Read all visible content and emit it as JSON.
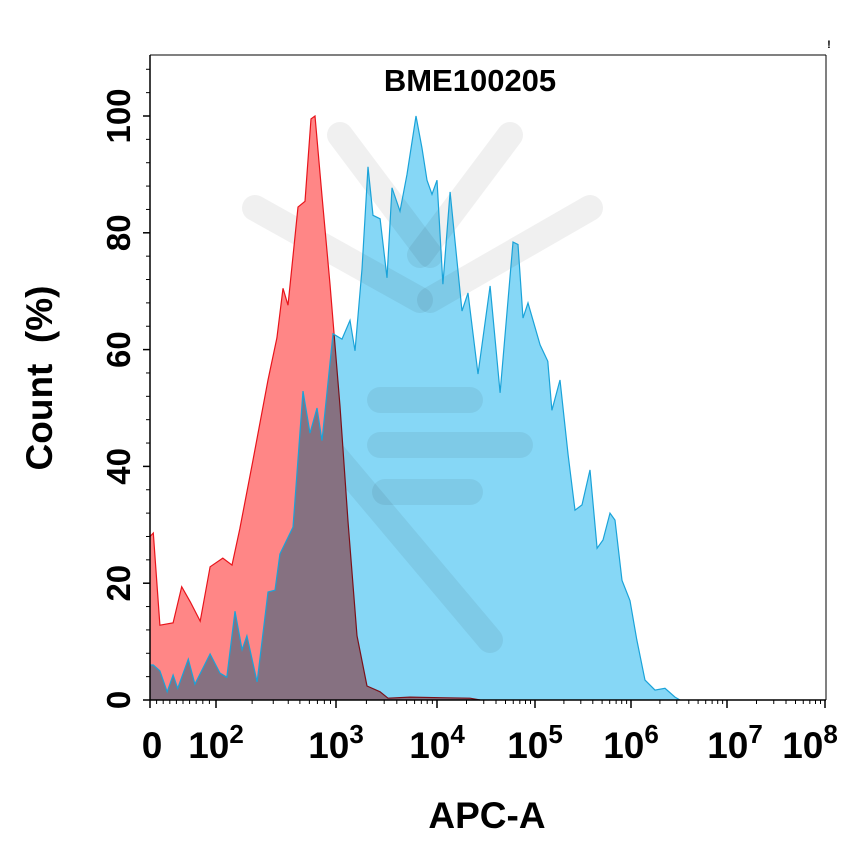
{
  "chart_data": {
    "type": "area",
    "title": "BME100205",
    "xlabel": "APC-A",
    "ylabel": "Count  (%)",
    "corner_mark": "!",
    "x_scale": "biexponential (log decades)",
    "xlim": [
      0,
      100000000
    ],
    "ylim": [
      0,
      110
    ],
    "x_ticks": [
      {
        "base": "0",
        "exp": ""
      },
      {
        "base": "10",
        "exp": "2"
      },
      {
        "base": "10",
        "exp": "3"
      },
      {
        "base": "10",
        "exp": "4"
      },
      {
        "base": "10",
        "exp": "5"
      },
      {
        "base": "10",
        "exp": "6"
      },
      {
        "base": "10",
        "exp": "7"
      },
      {
        "base": "10",
        "exp": "8"
      }
    ],
    "y_ticks": [
      "0",
      "20",
      "40",
      "60",
      "80",
      "100"
    ],
    "grid": false,
    "legend": "none",
    "series": [
      {
        "color": "#e8141b",
        "fill": "#ff7f80",
        "points": [
          [
            0,
            28
          ],
          [
            5,
            28.6
          ],
          [
            15,
            12.8
          ],
          [
            35,
            13.2
          ],
          [
            48,
            19.4
          ],
          [
            61,
            16.8
          ],
          [
            76,
            13.5
          ],
          [
            91,
            22.8
          ],
          [
            114,
            24.3
          ],
          [
            136,
            23.1
          ],
          [
            158,
            29.3
          ],
          [
            203,
            41
          ],
          [
            271,
            54.8
          ],
          [
            322,
            62
          ],
          [
            362,
            70.5
          ],
          [
            398,
            67.6
          ],
          [
            482,
            84.4
          ],
          [
            552,
            85.4
          ],
          [
            619,
            99.5
          ],
          [
            668,
            100
          ],
          [
            764,
            86.3
          ],
          [
            891,
            71.2
          ],
          [
            1096,
            50.3
          ],
          [
            1315,
            30.6
          ],
          [
            1614,
            11
          ],
          [
            2027,
            2.4
          ],
          [
            2730,
            1.4
          ],
          [
            3270,
            0.3
          ],
          [
            5400,
            0.5
          ],
          [
            10700,
            0.4
          ],
          [
            21700,
            0.3
          ],
          [
            27500,
            0
          ]
        ]
      },
      {
        "color": "#1aa3d9",
        "fill": "#7fd5f5",
        "points": [
          [
            0,
            6
          ],
          [
            5,
            6
          ],
          [
            15,
            5
          ],
          [
            26,
            1.4
          ],
          [
            35,
            4.3
          ],
          [
            42,
            2
          ],
          [
            58,
            7
          ],
          [
            68,
            2.7
          ],
          [
            91,
            7.9
          ],
          [
            108,
            4.6
          ],
          [
            123,
            3.9
          ],
          [
            144,
            15.2
          ],
          [
            165,
            8.6
          ],
          [
            181,
            11
          ],
          [
            220,
            3.1
          ],
          [
            271,
            18.5
          ],
          [
            310,
            18.8
          ],
          [
            341,
            25
          ],
          [
            438,
            29.6
          ],
          [
            531,
            52.9
          ],
          [
            607,
            45.7
          ],
          [
            695,
            50
          ],
          [
            764,
            44.4
          ],
          [
            944,
            62.7
          ],
          [
            1146,
            61.8
          ],
          [
            1377,
            65
          ],
          [
            1542,
            59.8
          ],
          [
            1807,
            73.8
          ],
          [
            2075,
            91.3
          ],
          [
            2324,
            83
          ],
          [
            2730,
            82.4
          ],
          [
            3199,
            72.3
          ],
          [
            3583,
            87.7
          ],
          [
            4305,
            83.7
          ],
          [
            5047,
            90
          ],
          [
            6194,
            100
          ],
          [
            7102,
            94.5
          ],
          [
            7962,
            89
          ],
          [
            8925,
            86.6
          ],
          [
            10000,
            89
          ],
          [
            11500,
            71.2
          ],
          [
            13600,
            87
          ],
          [
            18000,
            66.6
          ],
          [
            20700,
            69.7
          ],
          [
            26200,
            55.8
          ],
          [
            34800,
            70.9
          ],
          [
            44000,
            52.6
          ],
          [
            59700,
            78.4
          ],
          [
            67100,
            78
          ],
          [
            75500,
            65.4
          ],
          [
            84800,
            68
          ],
          [
            113000,
            60.8
          ],
          [
            136000,
            58
          ],
          [
            150000,
            49.6
          ],
          [
            182000,
            54.8
          ],
          [
            221000,
            42
          ],
          [
            261000,
            32.5
          ],
          [
            309000,
            33.4
          ],
          [
            374000,
            39.4
          ],
          [
            443000,
            26
          ],
          [
            511000,
            27.4
          ],
          [
            604000,
            32
          ],
          [
            681000,
            30.8
          ],
          [
            805000,
            20.5
          ],
          [
            977000,
            17
          ],
          [
            1150000,
            10.3
          ],
          [
            1400000,
            3.4
          ],
          [
            1780000,
            1.7
          ],
          [
            2260000,
            2
          ],
          [
            2870000,
            0.5
          ],
          [
            3240000,
            0
          ]
        ]
      }
    ]
  }
}
